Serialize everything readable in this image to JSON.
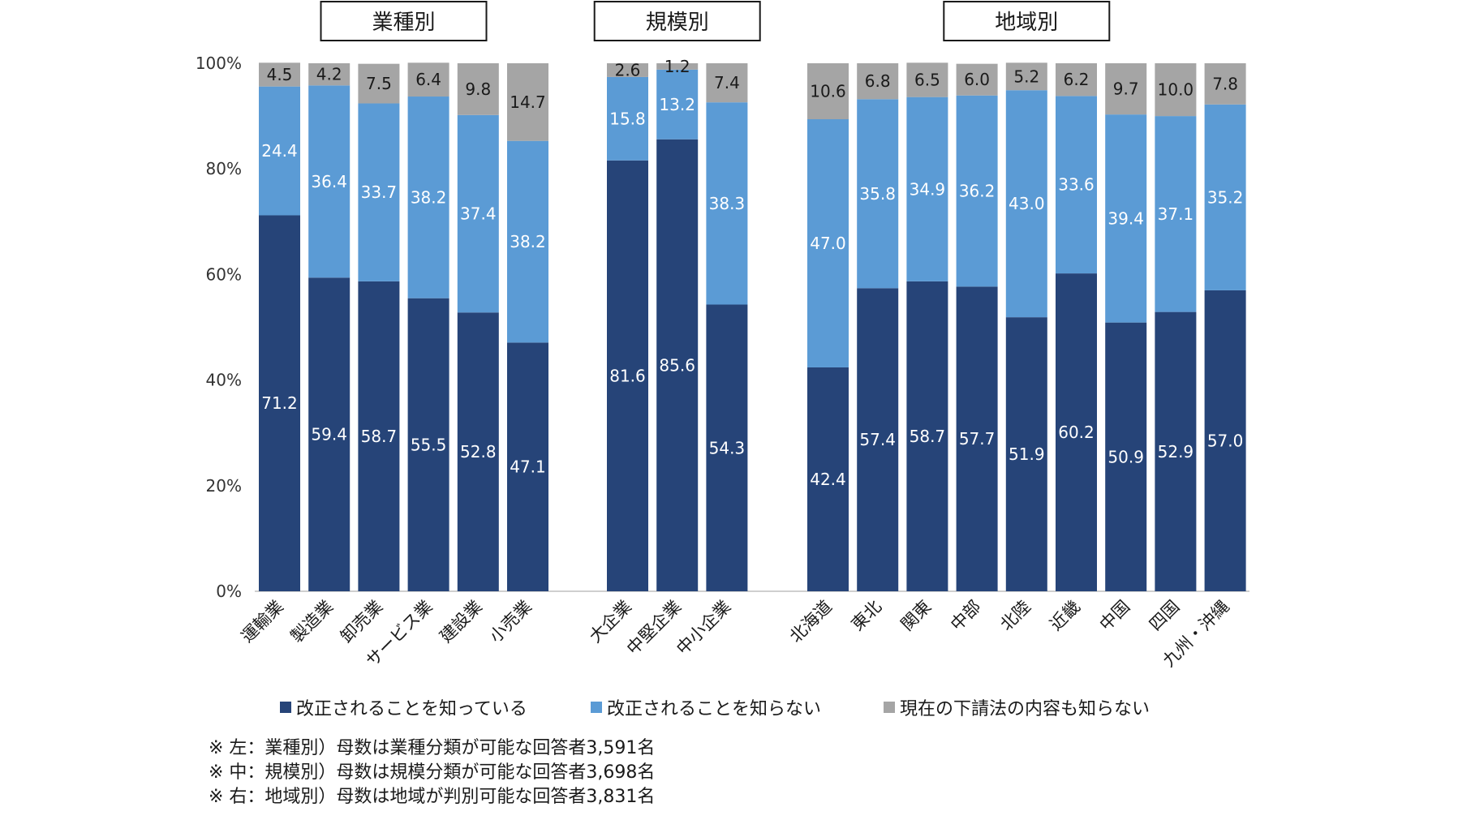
{
  "chart_data": {
    "type": "bar",
    "stacked": true,
    "percent_stacked": true,
    "y_ticks": [
      "0%",
      "20%",
      "40%",
      "60%",
      "80%",
      "100%"
    ],
    "ylim": [
      0,
      100
    ],
    "grid": false,
    "legend_placement": "bottom",
    "series_names": [
      "改正されることを知っている",
      "改正されることを知らない",
      "現在の下請法の内容も知らない"
    ],
    "series_colors": [
      "#264478",
      "#5b9bd5",
      "#a5a5a5"
    ],
    "groups": [
      {
        "title": "業種別",
        "categories": [
          "運輸業",
          "製造業",
          "卸売業",
          "サービス業",
          "建設業",
          "小売業"
        ],
        "series": [
          {
            "name": "改正されることを知っている",
            "values": [
              71.2,
              59.4,
              58.7,
              55.5,
              52.8,
              47.1
            ]
          },
          {
            "name": "改正されることを知らない",
            "values": [
              24.4,
              36.4,
              33.7,
              38.2,
              37.4,
              38.2
            ]
          },
          {
            "name": "現在の下請法の内容も知らない",
            "values": [
              4.5,
              4.2,
              7.5,
              6.4,
              9.8,
              14.7
            ]
          }
        ]
      },
      {
        "title": "規模別",
        "categories": [
          "大企業",
          "中堅企業",
          "中小企業"
        ],
        "series": [
          {
            "name": "改正されることを知っている",
            "values": [
              81.6,
              85.6,
              54.3
            ]
          },
          {
            "name": "改正されることを知らない",
            "values": [
              15.8,
              13.2,
              38.3
            ]
          },
          {
            "name": "現在の下請法の内容も知らない",
            "values": [
              2.6,
              1.2,
              7.4
            ]
          }
        ]
      },
      {
        "title": "地域別",
        "categories": [
          "北海道",
          "東北",
          "関東",
          "中部",
          "北陸",
          "近畿",
          "中国",
          "四国",
          "九州・沖縄"
        ],
        "series": [
          {
            "name": "改正されることを知っている",
            "values": [
              42.4,
              57.4,
              58.7,
              57.7,
              51.9,
              60.2,
              50.9,
              52.9,
              57.0
            ]
          },
          {
            "name": "改正されることを知らない",
            "values": [
              47.0,
              35.8,
              34.9,
              36.2,
              43.0,
              33.6,
              39.4,
              37.1,
              35.2
            ]
          },
          {
            "name": "現在の下請法の内容も知らない",
            "values": [
              10.6,
              6.8,
              6.5,
              6.0,
              5.2,
              6.2,
              9.7,
              10.0,
              7.8
            ]
          }
        ]
      }
    ]
  },
  "notes": [
    "※ 左：業種別）母数は業種分類が可能な回答者3,591名",
    "※ 中：規模別）母数は規模分類が可能な回答者3,698名",
    "※ 右：地域別）母数は地域が判別可能な回答者3,831名"
  ]
}
